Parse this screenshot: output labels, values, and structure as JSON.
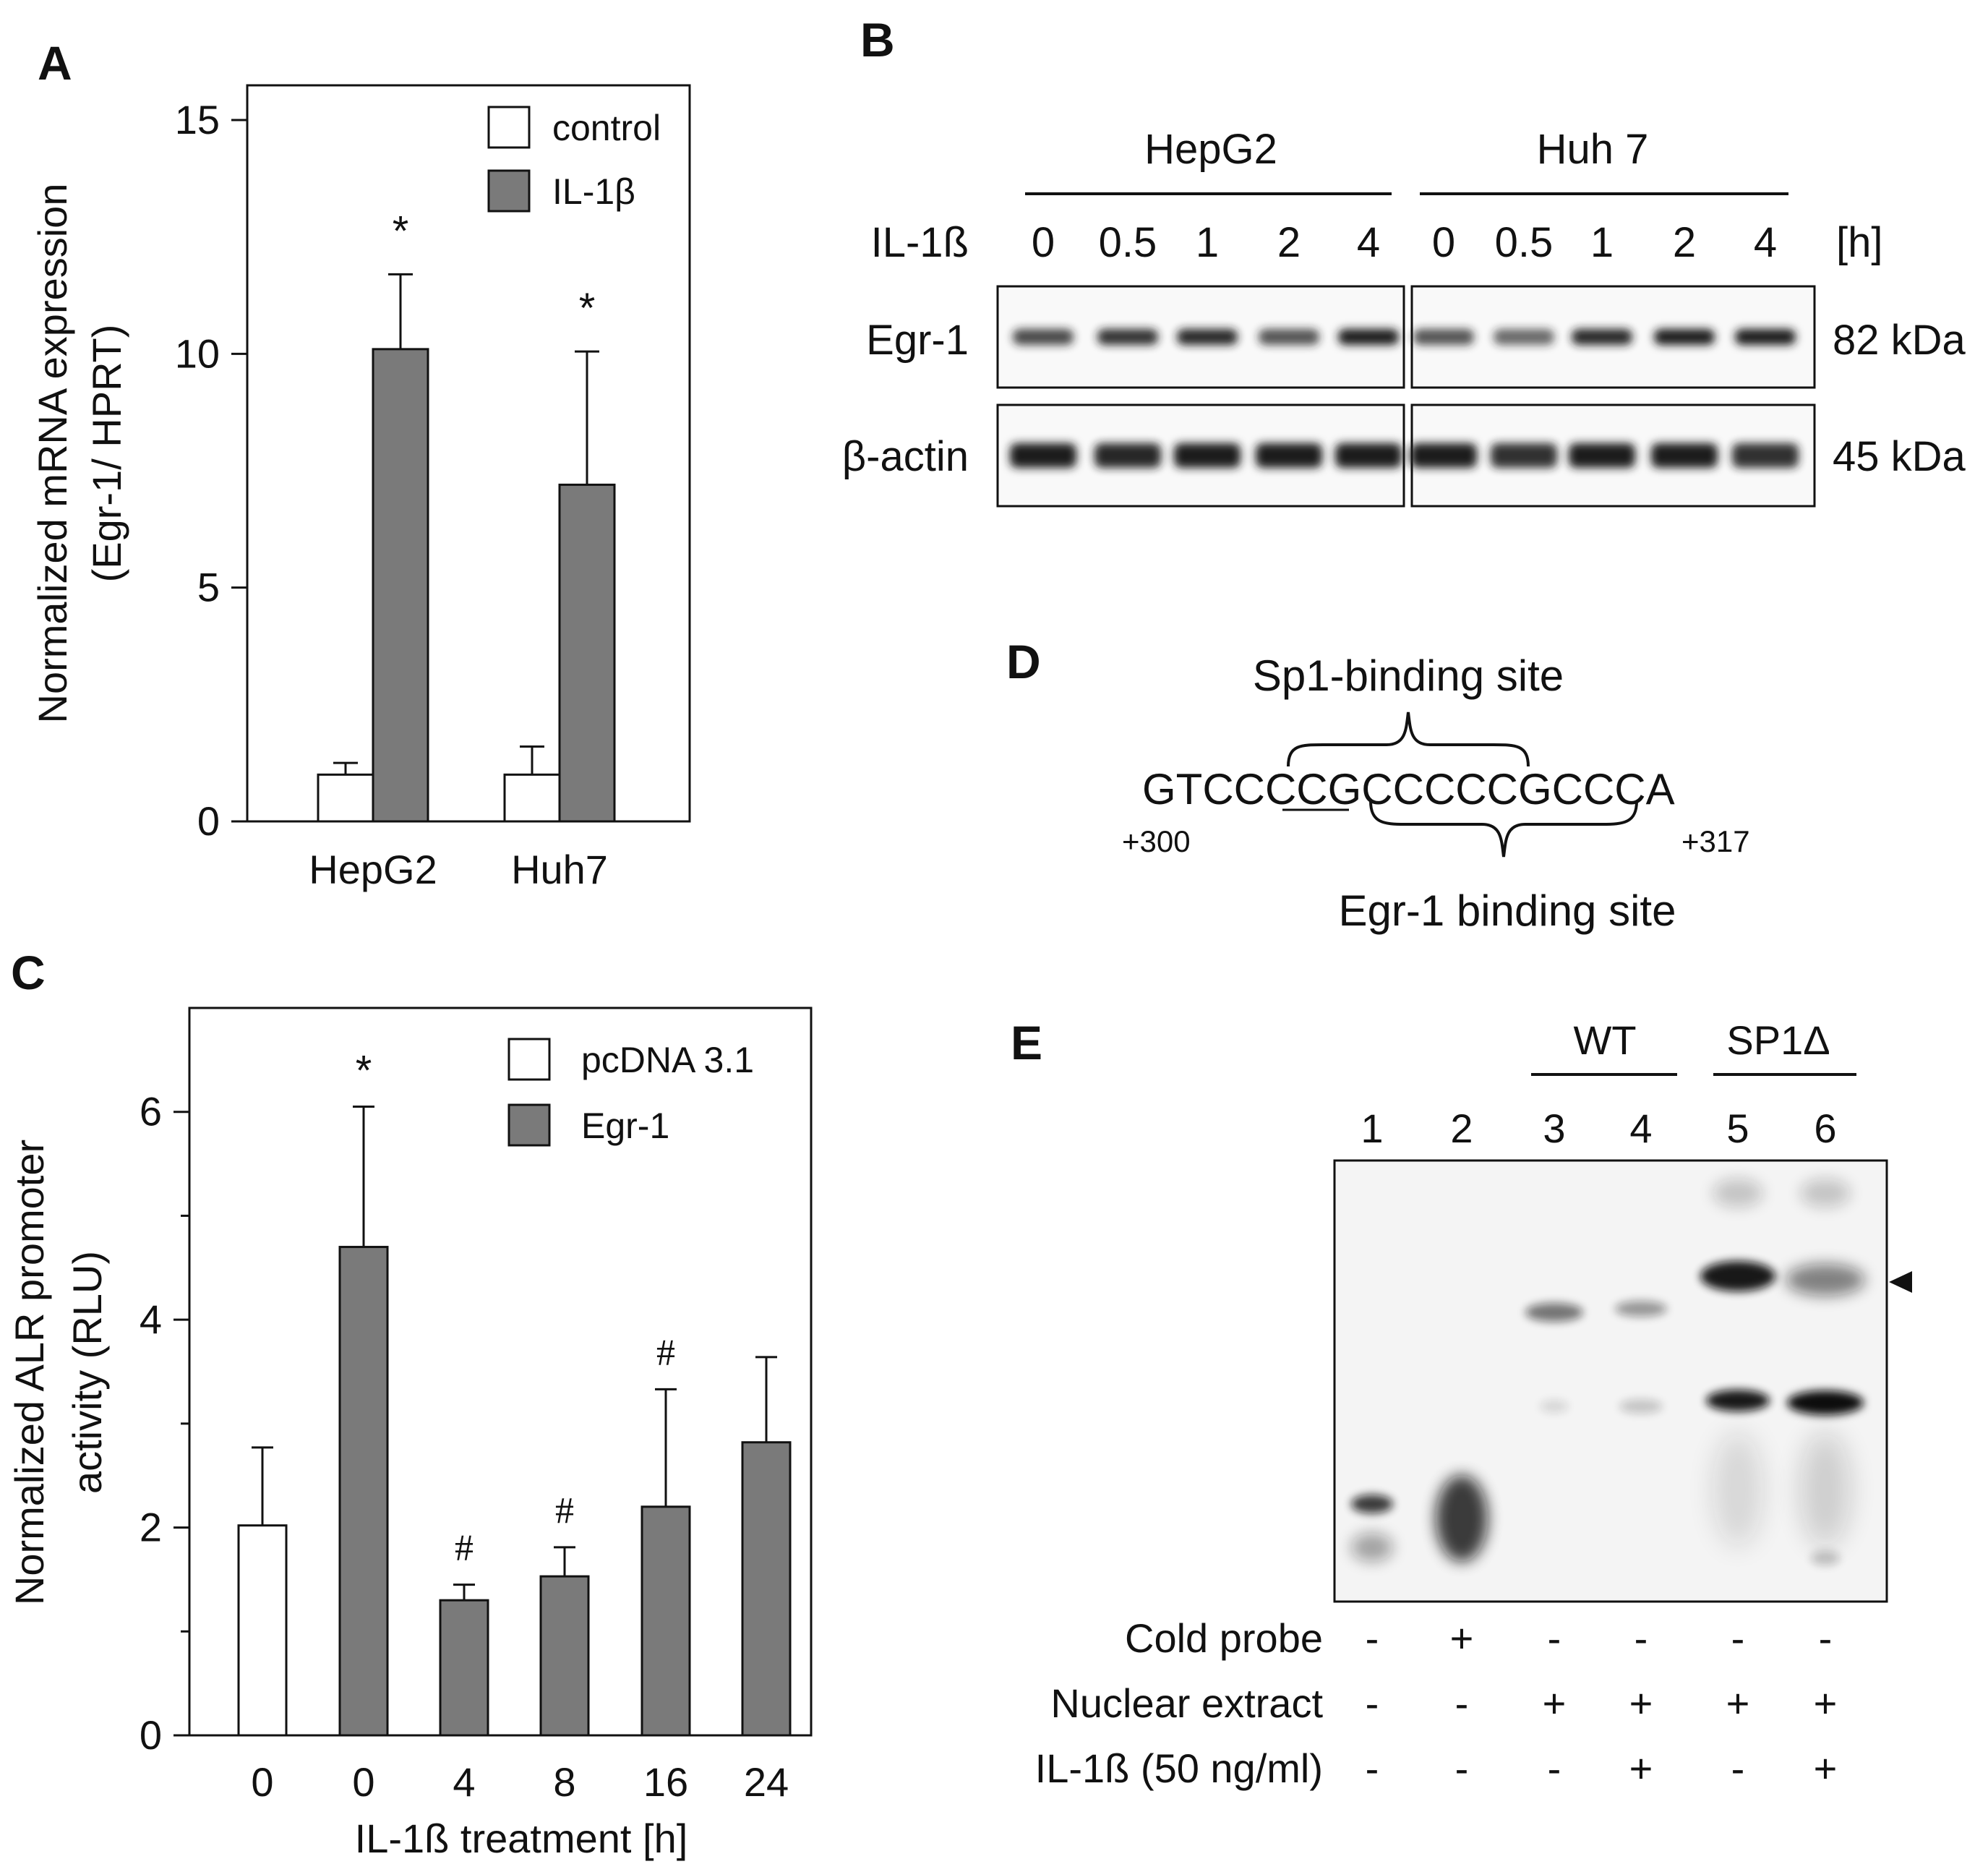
{
  "panelA": {
    "label": "A",
    "ylabel_line1": "Normalized mRNA expression",
    "ylabel_line2": "(Egr-1/ HPRT)",
    "legend": [
      "control",
      "IL-1β"
    ],
    "chart_data": {
      "type": "bar",
      "categories": [
        "HepG2",
        "Huh7"
      ],
      "series": [
        {
          "name": "control",
          "values": [
            1.0,
            1.0
          ],
          "errors": [
            0.25,
            0.6
          ],
          "color": "#ffffff"
        },
        {
          "name": "IL-1β",
          "values": [
            10.1,
            7.2
          ],
          "errors": [
            1.6,
            2.85
          ],
          "color": "#7a7a7a"
        }
      ],
      "ylim": [
        0,
        15
      ],
      "yticks": [
        "0",
        "5",
        "10",
        "15"
      ],
      "significance": [
        "*",
        "*"
      ]
    }
  },
  "panelB": {
    "label": "B",
    "groups": [
      "HepG2",
      "Huh 7"
    ],
    "row_label": "IL-1ß",
    "timepoints": [
      "0",
      "0.5",
      "1",
      "2",
      "4"
    ],
    "unit": "[h]",
    "bands": [
      {
        "name": "Egr-1",
        "size": "82 kDa",
        "intensity": [
          0.8,
          0.9,
          0.95,
          0.75,
          1.0,
          0.75,
          0.65,
          0.95,
          1.0,
          1.0
        ]
      },
      {
        "name": "β-actin",
        "size": "45 kDa",
        "intensity": [
          1.0,
          0.95,
          1.0,
          1.0,
          1.0,
          1.0,
          0.9,
          1.0,
          1.0,
          0.9
        ]
      }
    ]
  },
  "panelC": {
    "label": "C",
    "ylabel_line1": "Normalized ALR promoter",
    "ylabel_line2": "activity (RLU)",
    "xlabel": "IL-1ß treatment [h]",
    "legend": [
      "pcDNA 3.1",
      "Egr-1"
    ],
    "chart_data": {
      "type": "bar",
      "categories": [
        "0",
        "0",
        "4",
        "8",
        "16",
        "24"
      ],
      "values": [
        2.02,
        4.7,
        1.3,
        1.53,
        2.2,
        2.82
      ],
      "errors": [
        0.75,
        1.35,
        0.15,
        0.28,
        1.13,
        0.82
      ],
      "series_of_bar": [
        "pcDNA 3.1",
        "Egr-1",
        "Egr-1",
        "Egr-1",
        "Egr-1",
        "Egr-1"
      ],
      "marks": [
        "",
        "*",
        "#",
        "#",
        "#",
        ""
      ],
      "ylim": [
        0,
        7
      ],
      "yticks": [
        "0",
        "2",
        "4",
        "6"
      ]
    }
  },
  "panelD": {
    "label": "D",
    "top_label": "Sp1-binding site",
    "sequence": "GTCCCCGCCCCCGCCCA",
    "start": "+300",
    "end": "+317",
    "bottom_label": "Egr-1 binding site"
  },
  "panelE": {
    "label": "E",
    "groups": [
      "WT",
      "SP1Δ"
    ],
    "lanes": [
      "1",
      "2",
      "3",
      "4",
      "5",
      "6"
    ],
    "conditions": [
      {
        "name": "Cold probe",
        "values": [
          "-",
          "+",
          "-",
          "-",
          "-",
          "-"
        ]
      },
      {
        "name": "Nuclear extract",
        "values": [
          "-",
          "-",
          "+",
          "+",
          "+",
          "+"
        ]
      },
      {
        "name": "IL-1ß (50 ng/ml)",
        "values": [
          "-",
          "-",
          "-",
          "+",
          "-",
          "+"
        ]
      }
    ]
  }
}
